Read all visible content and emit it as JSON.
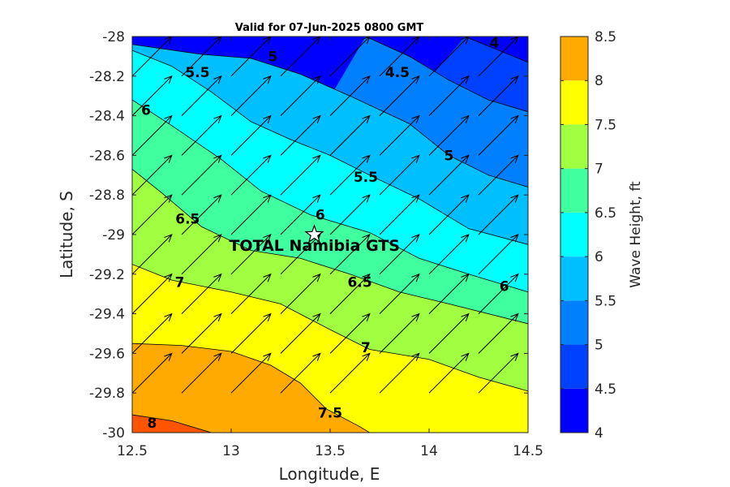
{
  "chart_data": {
    "type": "contour",
    "title": "Valid for 07-Jun-2025 0800 GMT",
    "xlabel": "Longitude, E",
    "ylabel": "Latitude, S",
    "xlim": [
      12.5,
      14.5
    ],
    "ylim": [
      -30,
      -28
    ],
    "x_ticks": [
      12.5,
      13,
      13.5,
      14,
      14.5
    ],
    "x_tick_labels": [
      "12.5",
      "13",
      "13.5",
      "14",
      "14.5"
    ],
    "y_ticks": [
      -28,
      -28.2,
      -28.4,
      -28.6,
      -28.8,
      -29,
      -29.2,
      -29.4,
      -29.6,
      -29.8,
      -30
    ],
    "y_tick_labels": [
      "-28",
      "-28.2",
      "-28.4",
      "-28.6",
      "-28.8",
      "-29",
      "-29.2",
      "-29.4",
      "-29.6",
      "-29.8",
      "-30"
    ],
    "colorbar": {
      "label": "Wave Height, ft",
      "levels": [
        4,
        4.5,
        5,
        5.5,
        6,
        6.5,
        7,
        7.5,
        8,
        8.5
      ],
      "tick_labels": [
        "4",
        "4.5",
        "5",
        "5.5",
        "6",
        "6.5",
        "7",
        "7.5",
        "8",
        "8.5"
      ],
      "colors": [
        "#0000ff",
        "#0040ff",
        "#0080ff",
        "#00bfff",
        "#00ffff",
        "#40ff9f",
        "#9fff40",
        "#ffff00",
        "#ffaa00",
        "#ff5500"
      ]
    },
    "contours": [
      {
        "level": 4,
        "label": "4",
        "points": [
          [
            14.18,
            -28
          ],
          [
            14.5,
            -28.13
          ]
        ]
      },
      {
        "level": 4.5,
        "label": "4.5",
        "points": [
          [
            13.68,
            -28
          ],
          [
            13.9,
            -28.1
          ],
          [
            14.1,
            -28.22
          ],
          [
            14.3,
            -28.32
          ],
          [
            14.5,
            -28.38
          ]
        ]
      },
      {
        "level": 5,
        "label": "5",
        "points": [
          [
            12.5,
            -28.04
          ],
          [
            12.85,
            -28.09
          ],
          [
            13.1,
            -28.11
          ],
          [
            13.35,
            -28.19
          ],
          [
            13.6,
            -28.3
          ],
          [
            13.9,
            -28.44
          ],
          [
            14.1,
            -28.6
          ],
          [
            14.3,
            -28.7
          ],
          [
            14.5,
            -28.76
          ]
        ]
      },
      {
        "level": 5.5,
        "label": "5.5",
        "points": [
          [
            12.5,
            -28.07
          ],
          [
            12.7,
            -28.15
          ],
          [
            12.9,
            -28.28
          ],
          [
            13.1,
            -28.43
          ],
          [
            13.3,
            -28.52
          ],
          [
            13.5,
            -28.6
          ],
          [
            13.7,
            -28.7
          ],
          [
            13.95,
            -28.82
          ],
          [
            14.2,
            -28.97
          ],
          [
            14.5,
            -29.05
          ]
        ]
      },
      {
        "level": 6,
        "label": "6",
        "points": [
          [
            12.5,
            -28.32
          ],
          [
            12.7,
            -28.45
          ],
          [
            12.95,
            -28.62
          ],
          [
            13.15,
            -28.78
          ],
          [
            13.4,
            -28.9
          ],
          [
            13.7,
            -28.99
          ],
          [
            13.95,
            -29.12
          ],
          [
            14.2,
            -29.2
          ],
          [
            14.5,
            -29.29
          ]
        ]
      },
      {
        "level": 6.5,
        "label": "6.5",
        "points": [
          [
            12.5,
            -28.67
          ],
          [
            12.65,
            -28.79
          ],
          [
            12.85,
            -28.96
          ],
          [
            13.1,
            -29.08
          ],
          [
            13.35,
            -29.12
          ],
          [
            13.6,
            -29.2
          ],
          [
            13.85,
            -29.29
          ],
          [
            14.1,
            -29.35
          ],
          [
            14.5,
            -29.45
          ]
        ]
      },
      {
        "level": 7,
        "label": "7",
        "points": [
          [
            12.5,
            -29.15
          ],
          [
            12.7,
            -29.23
          ],
          [
            13.0,
            -29.29
          ],
          [
            13.25,
            -29.35
          ],
          [
            13.5,
            -29.48
          ],
          [
            13.7,
            -29.58
          ],
          [
            14.0,
            -29.63
          ],
          [
            14.25,
            -29.72
          ],
          [
            14.5,
            -29.79
          ]
        ]
      },
      {
        "level": 7.5,
        "label": "7.5",
        "points": [
          [
            12.5,
            -29.55
          ],
          [
            12.75,
            -29.56
          ],
          [
            13.0,
            -29.59
          ],
          [
            13.2,
            -29.66
          ],
          [
            13.35,
            -29.75
          ],
          [
            13.48,
            -29.88
          ],
          [
            13.65,
            -29.97
          ],
          [
            13.7,
            -30
          ]
        ]
      },
      {
        "level": 8,
        "label": "8",
        "points": [
          [
            12.5,
            -29.91
          ],
          [
            12.7,
            -29.94
          ],
          [
            12.9,
            -30
          ]
        ]
      }
    ],
    "contour_labels": [
      {
        "text": "4",
        "x": 14.33,
        "y": -28.03
      },
      {
        "text": "4.5",
        "x": 13.84,
        "y": -28.18
      },
      {
        "text": "5",
        "x": 13.21,
        "y": -28.1
      },
      {
        "text": "5.5",
        "x": 12.83,
        "y": -28.18
      },
      {
        "text": "5",
        "x": 14.1,
        "y": -28.6
      },
      {
        "text": "5.5",
        "x": 13.68,
        "y": -28.71
      },
      {
        "text": "6",
        "x": 12.57,
        "y": -28.37
      },
      {
        "text": "6",
        "x": 13.45,
        "y": -28.9
      },
      {
        "text": "6",
        "x": 14.38,
        "y": -29.26
      },
      {
        "text": "6.5",
        "x": 12.78,
        "y": -28.92
      },
      {
        "text": "6.5",
        "x": 13.65,
        "y": -29.24
      },
      {
        "text": "7",
        "x": 12.74,
        "y": -29.24
      },
      {
        "text": "7",
        "x": 13.68,
        "y": -29.57
      },
      {
        "text": "7.5",
        "x": 13.5,
        "y": -29.9
      },
      {
        "text": "8",
        "x": 12.6,
        "y": -29.95
      }
    ],
    "wave_direction": {
      "label": "mean wave direction vectors (uniform, toward NE)",
      "x": [
        12.5,
        12.75,
        13.0,
        13.25,
        13.5,
        13.75,
        14.0,
        14.25
      ],
      "y": [
        -28.0,
        -28.2,
        -28.4,
        -28.6,
        -28.8,
        -29.0,
        -29.2,
        -29.4,
        -29.6,
        -29.8
      ],
      "u": 0.2,
      "v": 0.2
    },
    "station": {
      "name": "TOTAL Namibia GTS",
      "lon": 13.42,
      "lat": -29.0,
      "marker": "star"
    }
  }
}
